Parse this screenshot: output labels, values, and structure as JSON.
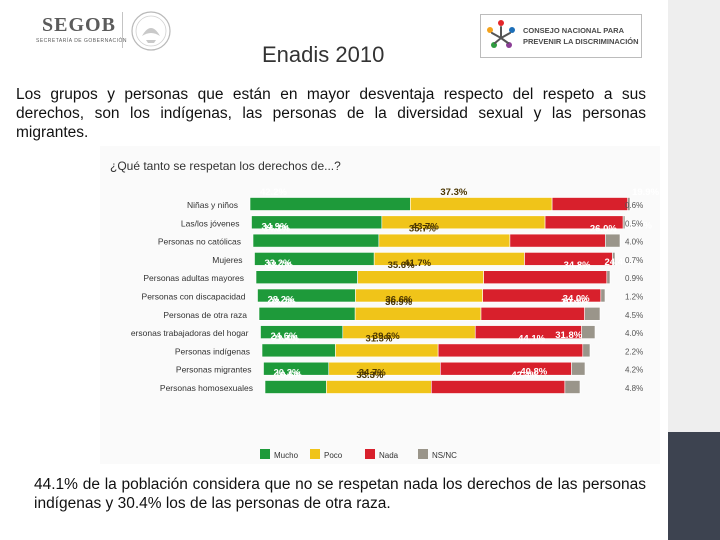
{
  "header": {
    "segob_name": "SEGOB",
    "segob_subtitle": "SECRETARÍA DE GOBERNACIÓN",
    "conapred_line1": "CONSEJO NACIONAL PARA",
    "conapred_line2": "PREVENIR LA DISCRIMINACIÓN",
    "title": "Enadis 2010"
  },
  "intro_text": "Los grupos y personas que están en mayor desventaja respecto del respeto a sus derechos, son los indígenas, las personas de la diversidad sexual y las personas migrantes.",
  "conclusion_text": "44.1% de la población considera que no se respetan nada los derechos de las personas indígenas y 30.4% los de las personas de otra raza.",
  "colors": {
    "mucho": "#1e9a3a",
    "poco": "#f0c419",
    "nada": "#d8202c",
    "nsnc": "#9a958a"
  },
  "chart_data": {
    "type": "bar",
    "orientation": "horizontal-stacked",
    "title": "¿Qué tanto se respetan los derechos de...?",
    "categories": [
      "Niñas y niños",
      "Las/los jóvenes",
      "Personas no católicas",
      "Mujeres",
      "Personas adultas mayores",
      "Personas con discapacidad",
      "Personas de otra raza",
      "Personas trabajadoras del hogar",
      "Personas indígenas",
      "Personas migrantes",
      "Personas homosexuales"
    ],
    "category_labels_visible": [
      "Niñas y niños",
      "Las/los jóvenes",
      "Personas no católicas",
      "Mujeres",
      "Personas adultas mayores",
      "Personas con discapacidad",
      "Personas de otra raza",
      "ersonas trabajadoras del hogar",
      "Personas indígenas",
      "Personas migrantes",
      "Personas homosexuales"
    ],
    "series": [
      {
        "name": "Mucho",
        "values": [
          42.2,
          34.9,
          34.3,
          33.2,
          28.7,
          28.2,
          28.2,
          24.6,
          22.4,
          20.3,
          19.5
        ]
      },
      {
        "name": "Poco",
        "values": [
          37.3,
          43.7,
          35.7,
          41.7,
          35.6,
          36.6,
          36.9,
          39.6,
          31.3,
          34.7,
          33.3
        ]
      },
      {
        "name": "Nada",
        "values": [
          19.9,
          20.9,
          26.0,
          24.4,
          34.8,
          34.0,
          30.4,
          31.8,
          44.1,
          40.8,
          42.4
        ]
      },
      {
        "name": "NS/NC",
        "values": [
          0.6,
          0.5,
          4.0,
          0.7,
          0.9,
          1.2,
          4.5,
          4.0,
          2.2,
          4.2,
          4.8
        ]
      }
    ],
    "value_labels": {
      "mucho": [
        "42.2%",
        "34.9%",
        "34.3%",
        "33.2%",
        "28.7%",
        "28.2%",
        "28.2%",
        "24.6%",
        "22.4%",
        "20.3%",
        "19.5%"
      ],
      "poco": [
        "37.3%",
        "43.7%",
        "35.7%",
        "41.7%",
        "35.6%",
        "36.6%",
        "36.9%",
        "39.6%",
        "31.3%",
        "34.7%",
        "33.3%"
      ],
      "nada": [
        "19.9%",
        "20.9%",
        "26.0%",
        "24.4%",
        "34.8%",
        "34.0%",
        "30.4%",
        "31.8%",
        "44.1%",
        "40.8%",
        "42.4%"
      ],
      "nsnc": [
        "0.6%",
        "0.5%",
        "4.0%",
        "0.7%",
        "0.9%",
        "1.2%",
        "4.5%",
        "4.0%",
        "2.2%",
        "4.2%",
        "4.8%"
      ]
    },
    "legend": [
      "Mucho",
      "Poco",
      "Nada",
      "NS/NC"
    ],
    "legend_position": "bottom",
    "xlim": [
      0,
      100
    ]
  }
}
